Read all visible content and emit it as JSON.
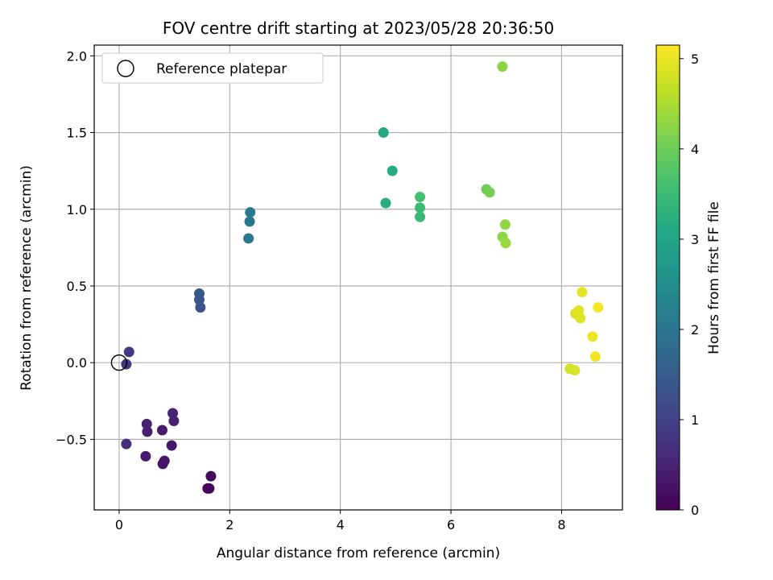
{
  "chart_data": {
    "type": "scatter",
    "title": "FOV centre drift starting at 2023/05/28 20:36:50",
    "xlabel": "Angular distance from reference (arcmin)",
    "ylabel": "Rotation from reference (arcmin)",
    "xlim": [
      -0.45,
      9.1
    ],
    "ylim": [
      -0.96,
      2.07
    ],
    "xticks": [
      0,
      2,
      4,
      6,
      8
    ],
    "yticks": [
      -0.5,
      0.0,
      0.5,
      1.0,
      1.5,
      2.0
    ],
    "xtick_labels": [
      "0",
      "2",
      "4",
      "6",
      "8"
    ],
    "ytick_labels": [
      "−0.5",
      "0.0",
      "0.5",
      "1.0",
      "1.5",
      "2.0"
    ],
    "grid": true,
    "legend": {
      "placement": "upper-left",
      "entries": [
        {
          "label": "Reference platepar",
          "marker": "open-circle",
          "x": 0.0,
          "y": 0.0
        }
      ]
    },
    "colorbar": {
      "label": "Hours from first FF file",
      "colormap": "viridis",
      "range": [
        0,
        5.15
      ],
      "ticks": [
        0,
        1,
        2,
        3,
        4,
        5
      ],
      "tick_labels": [
        "0",
        "1",
        "2",
        "3",
        "4",
        "5"
      ]
    },
    "points": [
      {
        "x": 1.6,
        "y": -0.82,
        "c": 0.05
      },
      {
        "x": 1.63,
        "y": -0.82,
        "c": 0.08
      },
      {
        "x": 1.66,
        "y": -0.74,
        "c": 0.12
      },
      {
        "x": 0.79,
        "y": -0.66,
        "c": 0.25
      },
      {
        "x": 0.82,
        "y": -0.64,
        "c": 0.28
      },
      {
        "x": 0.48,
        "y": -0.61,
        "c": 0.4
      },
      {
        "x": 0.95,
        "y": -0.54,
        "c": 0.35
      },
      {
        "x": 0.51,
        "y": -0.45,
        "c": 0.45
      },
      {
        "x": 0.78,
        "y": -0.44,
        "c": 0.38
      },
      {
        "x": 0.5,
        "y": -0.4,
        "c": 0.48
      },
      {
        "x": 0.99,
        "y": -0.38,
        "c": 0.45
      },
      {
        "x": 0.97,
        "y": -0.33,
        "c": 0.5
      },
      {
        "x": 0.13,
        "y": -0.53,
        "c": 0.7
      },
      {
        "x": 0.13,
        "y": -0.01,
        "c": 0.82
      },
      {
        "x": 0.18,
        "y": 0.07,
        "c": 0.85
      },
      {
        "x": 1.47,
        "y": 0.36,
        "c": 1.3
      },
      {
        "x": 1.45,
        "y": 0.41,
        "c": 1.35
      },
      {
        "x": 1.45,
        "y": 0.45,
        "c": 1.4
      },
      {
        "x": 2.34,
        "y": 0.81,
        "c": 2.0
      },
      {
        "x": 2.36,
        "y": 0.92,
        "c": 2.05
      },
      {
        "x": 2.37,
        "y": 0.98,
        "c": 2.1
      },
      {
        "x": 4.78,
        "y": 1.5,
        "c": 3.05
      },
      {
        "x": 4.94,
        "y": 1.25,
        "c": 3.15
      },
      {
        "x": 4.82,
        "y": 1.04,
        "c": 3.2
      },
      {
        "x": 5.44,
        "y": 0.95,
        "c": 3.45
      },
      {
        "x": 5.44,
        "y": 1.01,
        "c": 3.5
      },
      {
        "x": 5.44,
        "y": 1.08,
        "c": 3.6
      },
      {
        "x": 6.64,
        "y": 1.13,
        "c": 4.0
      },
      {
        "x": 6.7,
        "y": 1.11,
        "c": 4.05
      },
      {
        "x": 6.93,
        "y": 0.82,
        "c": 4.25
      },
      {
        "x": 6.98,
        "y": 0.9,
        "c": 4.3
      },
      {
        "x": 6.99,
        "y": 0.78,
        "c": 4.35
      },
      {
        "x": 6.93,
        "y": 1.93,
        "c": 4.25
      },
      {
        "x": 8.15,
        "y": -0.04,
        "c": 4.8
      },
      {
        "x": 8.24,
        "y": -0.05,
        "c": 4.85
      },
      {
        "x": 8.25,
        "y": 0.32,
        "c": 4.85
      },
      {
        "x": 8.31,
        "y": 0.34,
        "c": 4.9
      },
      {
        "x": 8.34,
        "y": 0.29,
        "c": 4.9
      },
      {
        "x": 8.37,
        "y": 0.46,
        "c": 4.95
      },
      {
        "x": 8.56,
        "y": 0.17,
        "c": 5.0
      },
      {
        "x": 8.61,
        "y": 0.04,
        "c": 5.05
      },
      {
        "x": 8.66,
        "y": 0.36,
        "c": 5.1
      }
    ]
  }
}
